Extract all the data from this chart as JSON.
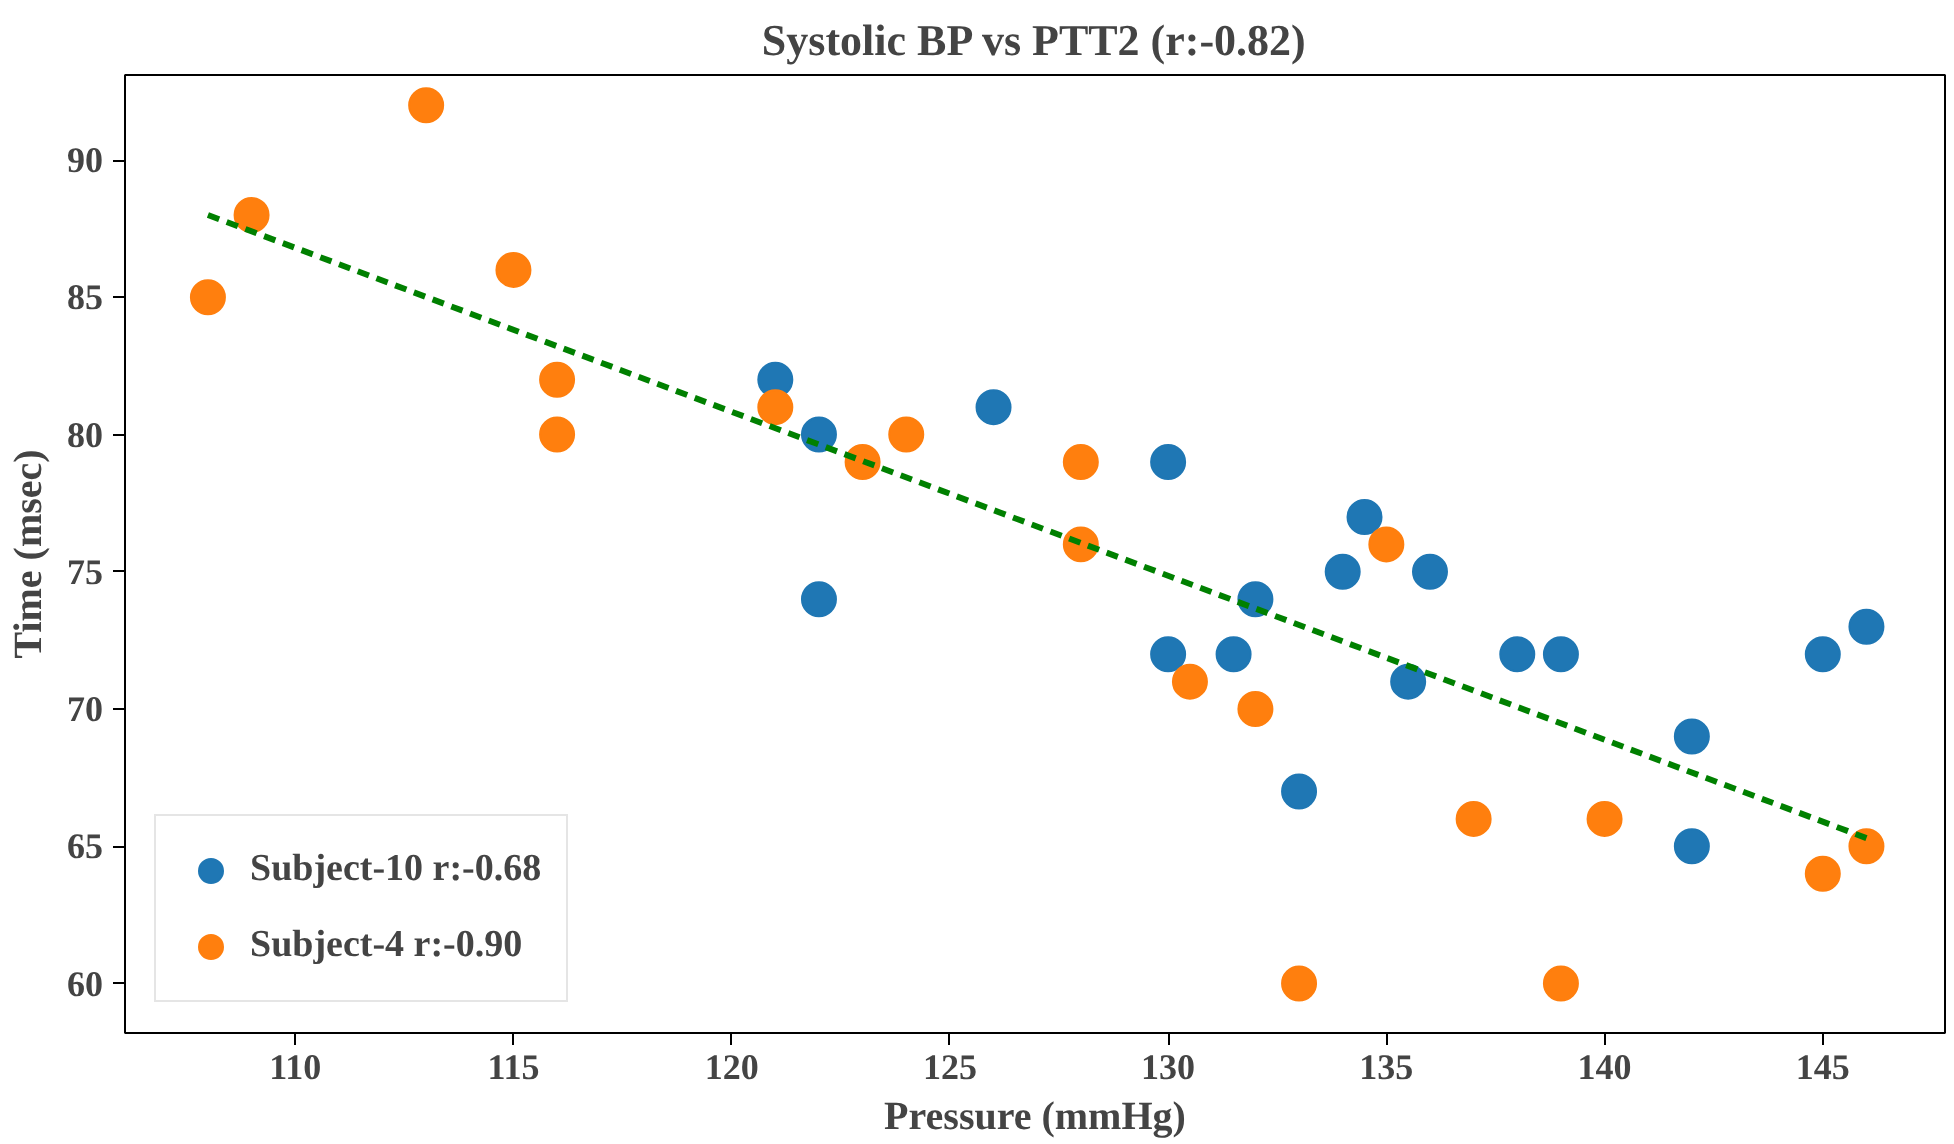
{
  "chart_data": {
    "type": "scatter",
    "title": "Systolic BP vs PTT2 (r:-0.82)",
    "xlabel": "Pressure (mmHg)",
    "ylabel": "Time (msec)",
    "xlim": [
      106.1,
      147.8
    ],
    "ylim": [
      58.2,
      93.1
    ],
    "xticks": [
      110,
      115,
      120,
      125,
      130,
      135,
      140,
      145
    ],
    "yticks": [
      60,
      65,
      70,
      75,
      80,
      85,
      90
    ],
    "legend": "bottom left",
    "marker": "circle",
    "grid": false,
    "series": [
      {
        "name": "Subject-10 r:-0.68",
        "color": "#1f77b4",
        "x": [
          121,
          122,
          122,
          126,
          130,
          130,
          131.5,
          132,
          133,
          134,
          134.5,
          135.5,
          136,
          138,
          139,
          142,
          142,
          145,
          146
        ],
        "values": [
          82,
          80,
          74,
          81,
          79,
          72,
          72,
          74,
          67,
          75,
          77,
          71,
          75,
          72,
          72,
          69,
          65,
          72,
          73
        ]
      },
      {
        "name": "Subject-4 r:-0.90",
        "color": "#ff7f0e",
        "x": [
          108,
          109,
          113,
          115,
          116,
          116,
          121,
          123,
          124,
          128,
          128,
          130.5,
          132,
          133,
          135,
          137,
          139,
          140,
          145,
          146
        ],
        "values": [
          85,
          88,
          92,
          86,
          82,
          80,
          81,
          79,
          80,
          79,
          76,
          71,
          70,
          60,
          76,
          66,
          60,
          66,
          64,
          65
        ]
      },
      {
        "type": "line",
        "color": "#008000",
        "line_style": "dashed",
        "marker": "none",
        "x": [
          108,
          146
        ],
        "values": [
          88,
          65.3
        ]
      }
    ]
  }
}
